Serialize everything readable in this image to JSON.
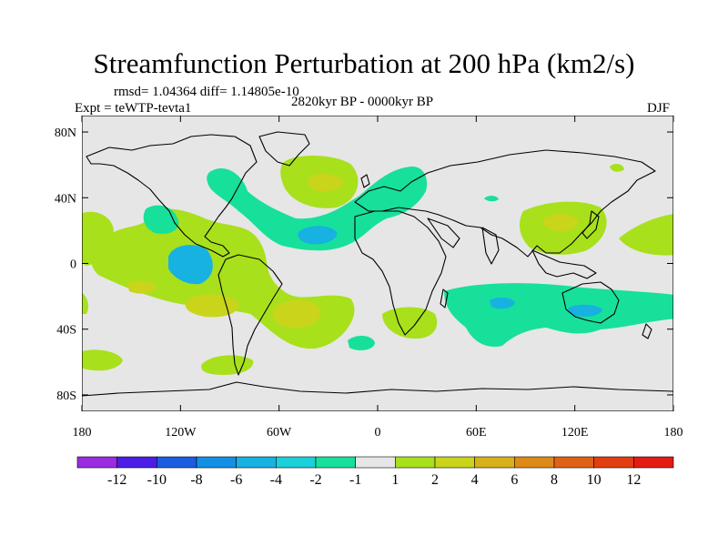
{
  "title": "Streamfunction Perturbation at 200 hPa (km2/s)",
  "stats": "rmsd= 1.04364 diff= 1.14805e-10",
  "expt": "Expt = teWTP-tevta1",
  "period": "2820kyr BP - 0000kyr BP",
  "season": "DJF",
  "lat_ticks": [
    "80N",
    "40N",
    "0",
    "40S",
    "80S"
  ],
  "lon_ticks": [
    "180",
    "120W",
    "60W",
    "0",
    "60E",
    "120E",
    "180"
  ],
  "colorbar": {
    "labels": [
      "-12",
      "-10",
      "-8",
      "-6",
      "-4",
      "-2",
      "-1",
      "1",
      "2",
      "4",
      "6",
      "8",
      "10",
      "12"
    ],
    "colors": [
      "#9a2be3",
      "#4b1de6",
      "#1a5de0",
      "#138fe3",
      "#17b1e2",
      "#1bd0d8",
      "#17e09b",
      "#e6e6e6",
      "#a8e01c",
      "#c9d41b",
      "#d8b01a",
      "#dd8a18",
      "#e06216",
      "#e23d13",
      "#e21c12"
    ]
  },
  "map_data": {
    "projection": "cylindrical equidistant",
    "lon_range": [
      -180,
      180
    ],
    "lat_range": [
      -90,
      90
    ]
  }
}
